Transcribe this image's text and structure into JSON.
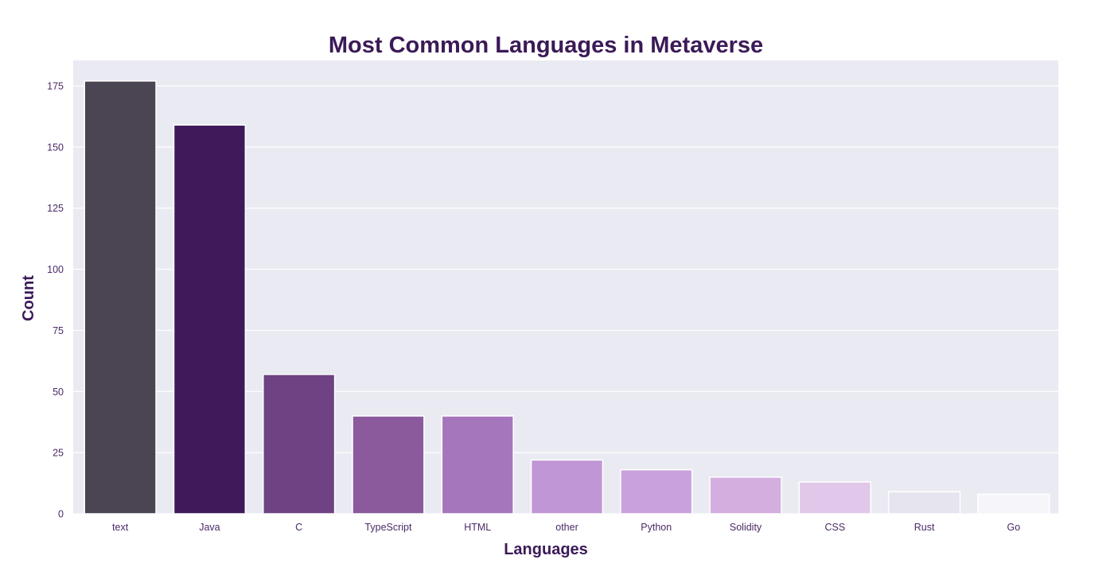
{
  "chart_data": {
    "type": "bar",
    "title": "Most Common Languages in Metaverse",
    "xlabel": "Languages",
    "ylabel": "Count",
    "categories": [
      "text",
      "Java",
      "C",
      "TypeScript",
      "HTML",
      "other",
      "Python",
      "Solidity",
      "CSS",
      "Rust",
      "Go"
    ],
    "values": [
      177,
      159,
      57,
      40,
      40,
      22,
      18,
      15,
      13,
      9,
      8
    ],
    "ylim": [
      0,
      180
    ],
    "yticks": [
      "0",
      "25",
      "50",
      "75",
      "100",
      "125",
      "150",
      "175"
    ],
    "grid": true,
    "colors": [
      "#4b4453",
      "#3e1a5a",
      "#6e4283",
      "#8a5a9c",
      "#a676bd",
      "#c196d6",
      "#c9a2dc",
      "#d3aedf",
      "#e1c7e9",
      "#e6e4ef",
      "#f6f6fa"
    ],
    "plot_background": "#eaeaf2"
  }
}
